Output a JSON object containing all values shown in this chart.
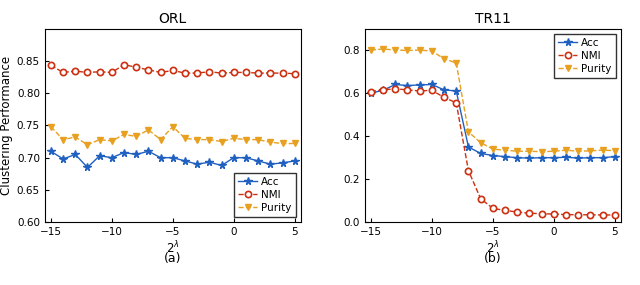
{
  "orl_title": "ORL",
  "tr11_title": "TR11",
  "ylabel": "Clustering Performance",
  "subtitle_a": "(a)",
  "subtitle_b": "(b)",
  "x_ticks": [
    -15,
    -10,
    -5,
    0,
    5
  ],
  "xlim": [
    -15.5,
    5.5
  ],
  "orl_ylim": [
    0.6,
    0.9
  ],
  "orl_yticks": [
    0.6,
    0.65,
    0.7,
    0.75,
    0.8,
    0.85
  ],
  "tr11_ylim": [
    0.0,
    0.9
  ],
  "tr11_yticks": [
    0.0,
    0.2,
    0.4,
    0.6,
    0.8
  ],
  "orl_x": [
    -15,
    -14,
    -13,
    -12,
    -11,
    -10,
    -9,
    -8,
    -7,
    -6,
    -5,
    -4,
    -3,
    -2,
    -1,
    0,
    1,
    2,
    3,
    4,
    5
  ],
  "orl_acc": [
    0.71,
    0.698,
    0.705,
    0.685,
    0.703,
    0.7,
    0.708,
    0.705,
    0.71,
    0.7,
    0.7,
    0.695,
    0.69,
    0.693,
    0.688,
    0.7,
    0.7,
    0.695,
    0.69,
    0.692,
    0.695
  ],
  "orl_nmi": [
    0.843,
    0.832,
    0.834,
    0.832,
    0.833,
    0.832,
    0.844,
    0.84,
    0.836,
    0.832,
    0.835,
    0.831,
    0.831,
    0.833,
    0.831,
    0.832,
    0.832,
    0.831,
    0.831,
    0.831,
    0.83
  ],
  "orl_purity": [
    0.748,
    0.728,
    0.732,
    0.72,
    0.728,
    0.726,
    0.736,
    0.733,
    0.743,
    0.728,
    0.748,
    0.73,
    0.728,
    0.728,
    0.725,
    0.73,
    0.728,
    0.728,
    0.724,
    0.722,
    0.722
  ],
  "tr11_x": [
    -15,
    -14,
    -13,
    -12,
    -11,
    -10,
    -9,
    -8,
    -7,
    -6,
    -5,
    -4,
    -3,
    -2,
    -1,
    0,
    1,
    2,
    3,
    4,
    5
  ],
  "tr11_acc": [
    0.6,
    0.613,
    0.64,
    0.635,
    0.638,
    0.64,
    0.615,
    0.61,
    0.35,
    0.32,
    0.31,
    0.305,
    0.3,
    0.298,
    0.3,
    0.3,
    0.302,
    0.298,
    0.3,
    0.3,
    0.305
  ],
  "tr11_nmi": [
    0.607,
    0.615,
    0.62,
    0.615,
    0.61,
    0.613,
    0.58,
    0.555,
    0.24,
    0.11,
    0.065,
    0.055,
    0.048,
    0.042,
    0.04,
    0.038,
    0.036,
    0.035,
    0.035,
    0.034,
    0.034
  ],
  "tr11_purity": [
    0.8,
    0.805,
    0.8,
    0.798,
    0.8,
    0.795,
    0.76,
    0.74,
    0.42,
    0.37,
    0.34,
    0.335,
    0.33,
    0.33,
    0.328,
    0.33,
    0.335,
    0.33,
    0.332,
    0.335,
    0.333
  ],
  "acc_color": "#2060c0",
  "nmi_color": "#cc3010",
  "purity_color": "#e8a020",
  "legend_fontsize": 7.5,
  "title_fontsize": 10,
  "axis_fontsize": 8.5,
  "tick_fontsize": 7.5
}
